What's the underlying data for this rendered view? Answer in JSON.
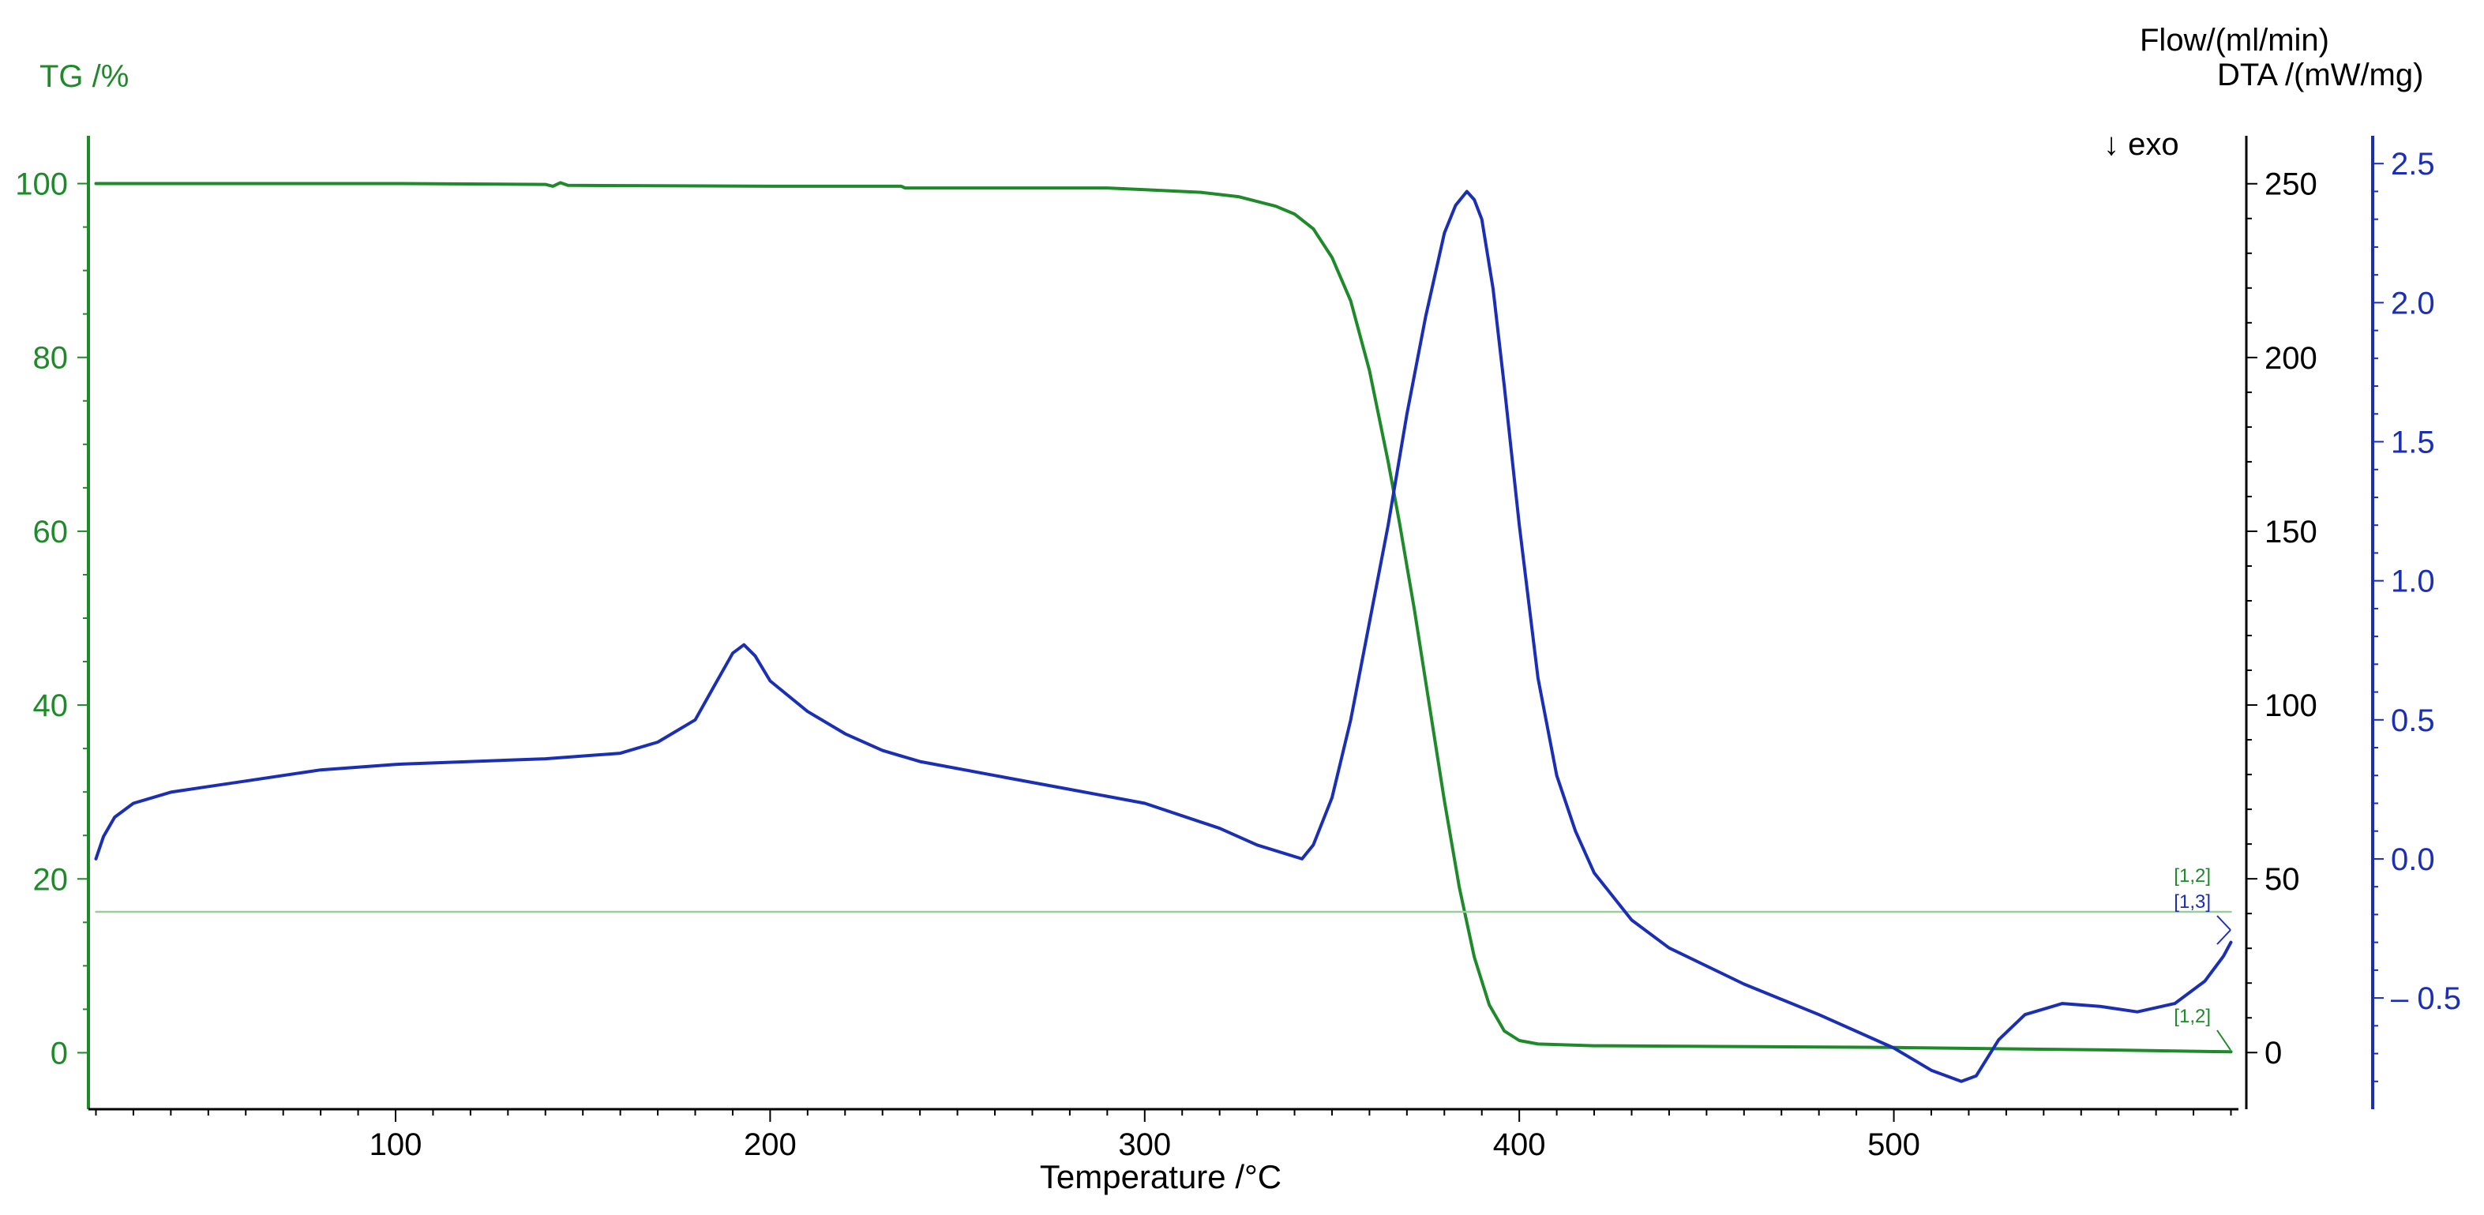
{
  "chart_data": {
    "type": "line",
    "title": "",
    "xlabel": "Temperature /°C",
    "xlim": [
      18,
      592
    ],
    "xticks": [
      100,
      200,
      300,
      400,
      500
    ],
    "axes": {
      "tg": {
        "label": "TG /%",
        "color": "#1f8a2a",
        "ylim": [
          -6.5,
          105.5
        ],
        "ticks": [
          0,
          20,
          40,
          60,
          80,
          100
        ]
      },
      "flow": {
        "label": "Flow/(ml/min)",
        "color": "#000000",
        "ylim": [
          -16.3,
          263.8
        ],
        "ticks": [
          0,
          50,
          100,
          150,
          200,
          250
        ]
      },
      "dta": {
        "label": "DTA /(mW/mg)",
        "color": "#1a2fb5",
        "ylim": [
          -0.9,
          2.6
        ],
        "ticks": [
          -0.5,
          0.0,
          0.5,
          1.0,
          1.5,
          2.0,
          2.5
        ],
        "tick_labels": [
          "– 0.5",
          "0.0",
          "0.5",
          "1.0",
          "1.5",
          "2.0",
          "2.5"
        ]
      }
    },
    "annotation": "↓ exo",
    "series": [
      {
        "axis": "tg",
        "color": "#1f8a2a",
        "points": [
          [
            20,
            100
          ],
          [
            100,
            100
          ],
          [
            140,
            99.9
          ],
          [
            142,
            99.7
          ],
          [
            144,
            100.1
          ],
          [
            146,
            99.8
          ],
          [
            200,
            99.7
          ],
          [
            235,
            99.7
          ],
          [
            236,
            99.5
          ],
          [
            290,
            99.5
          ],
          [
            300,
            99.3
          ],
          [
            315,
            99.0
          ],
          [
            325,
            98.5
          ],
          [
            335,
            97.4
          ],
          [
            340,
            96.5
          ],
          [
            345,
            94.8
          ],
          [
            350,
            91.5
          ],
          [
            355,
            86.5
          ],
          [
            360,
            78.5
          ],
          [
            365,
            68
          ],
          [
            368,
            61
          ],
          [
            372,
            51
          ],
          [
            376,
            40
          ],
          [
            380,
            29
          ],
          [
            384,
            19
          ],
          [
            388,
            11
          ],
          [
            392,
            5.5
          ],
          [
            396,
            2.5
          ],
          [
            400,
            1.4
          ],
          [
            405,
            1.0
          ],
          [
            420,
            0.8
          ],
          [
            500,
            0.6
          ],
          [
            560,
            0.3
          ],
          [
            590,
            0.1
          ]
        ]
      },
      {
        "axis": "flow",
        "color": "#9ccc9c",
        "points": [
          [
            20,
            40.5
          ],
          [
            590,
            40.5
          ]
        ]
      },
      {
        "axis": "dta",
        "color": "#1a2fb5",
        "points": [
          [
            20,
            0.0
          ],
          [
            22,
            0.08
          ],
          [
            25,
            0.15
          ],
          [
            30,
            0.2
          ],
          [
            40,
            0.24
          ],
          [
            50,
            0.26
          ],
          [
            60,
            0.28
          ],
          [
            80,
            0.32
          ],
          [
            100,
            0.34
          ],
          [
            120,
            0.35
          ],
          [
            140,
            0.36
          ],
          [
            160,
            0.38
          ],
          [
            170,
            0.42
          ],
          [
            180,
            0.5
          ],
          [
            185,
            0.62
          ],
          [
            190,
            0.74
          ],
          [
            193,
            0.77
          ],
          [
            196,
            0.73
          ],
          [
            200,
            0.64
          ],
          [
            210,
            0.53
          ],
          [
            220,
            0.45
          ],
          [
            230,
            0.39
          ],
          [
            240,
            0.35
          ],
          [
            260,
            0.3
          ],
          [
            280,
            0.25
          ],
          [
            300,
            0.2
          ],
          [
            320,
            0.11
          ],
          [
            330,
            0.05
          ],
          [
            342,
            0.0
          ],
          [
            345,
            0.05
          ],
          [
            350,
            0.22
          ],
          [
            355,
            0.5
          ],
          [
            360,
            0.85
          ],
          [
            365,
            1.2
          ],
          [
            370,
            1.6
          ],
          [
            375,
            1.95
          ],
          [
            380,
            2.25
          ],
          [
            383,
            2.35
          ],
          [
            386,
            2.4
          ],
          [
            388,
            2.37
          ],
          [
            390,
            2.3
          ],
          [
            393,
            2.05
          ],
          [
            396,
            1.7
          ],
          [
            400,
            1.2
          ],
          [
            405,
            0.65
          ],
          [
            410,
            0.3
          ],
          [
            415,
            0.1
          ],
          [
            420,
            -0.05
          ],
          [
            430,
            -0.22
          ],
          [
            440,
            -0.32
          ],
          [
            460,
            -0.45
          ],
          [
            480,
            -0.56
          ],
          [
            500,
            -0.68
          ],
          [
            510,
            -0.76
          ],
          [
            518,
            -0.8
          ],
          [
            522,
            -0.78
          ],
          [
            528,
            -0.65
          ],
          [
            535,
            -0.56
          ],
          [
            545,
            -0.52
          ],
          [
            555,
            -0.53
          ],
          [
            565,
            -0.55
          ],
          [
            575,
            -0.52
          ],
          [
            583,
            -0.44
          ],
          [
            588,
            -0.35
          ],
          [
            590,
            -0.3
          ]
        ]
      }
    ],
    "markers": [
      {
        "label": "[1,2]",
        "color": "#1f8a2a"
      },
      {
        "label": "[1,3]",
        "color": "#1a2fb5"
      },
      {
        "label": "[1,2]",
        "color": "#1f8a2a"
      }
    ]
  }
}
